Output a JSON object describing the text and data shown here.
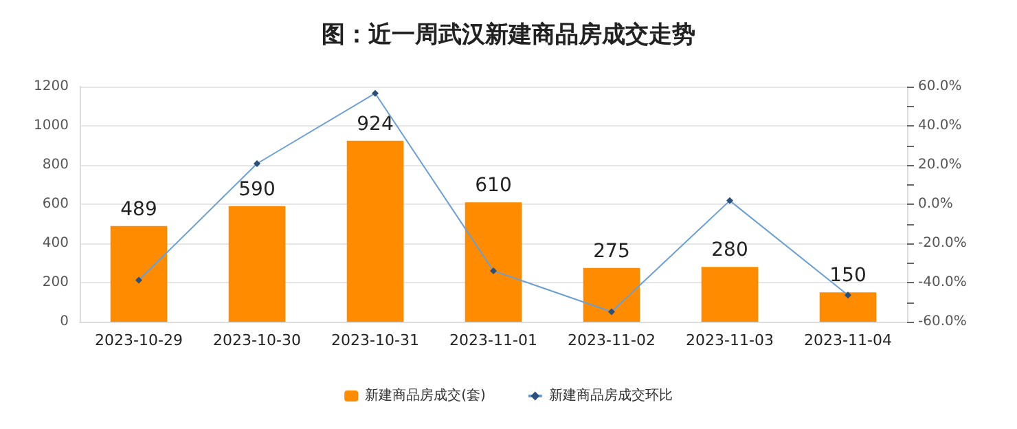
{
  "chart_data": {
    "type": "bar",
    "title": "图：近一周武汉新建商品房成交走势",
    "categories": [
      "2023-10-29",
      "2023-10-30",
      "2023-10-31",
      "2023-11-01",
      "2023-11-02",
      "2023-11-03",
      "2023-11-04"
    ],
    "series": [
      {
        "name": "新建商品房成交(套)",
        "color": "#ff8c00",
        "values": [
          489,
          590,
          924,
          610,
          275,
          280,
          150
        ],
        "value_labels": [
          "489",
          "590",
          "924",
          "610",
          "275",
          "280",
          "150"
        ]
      },
      {
        "name": "新建商品房成交环比",
        "type": "line",
        "axis": "y2",
        "color": "#6a9fd4",
        "marker": "diamond",
        "values": [
          -38.8,
          20.7,
          56.6,
          -34.0,
          -54.9,
          1.8,
          -46.4
        ]
      }
    ],
    "ylim": [
      0,
      1200
    ],
    "yticks": [
      0,
      200,
      400,
      600,
      800,
      1000,
      1200
    ],
    "y2lim": [
      -60,
      60
    ],
    "y2ticks": [
      {
        "value": -60,
        "label": "-60.0%"
      },
      {
        "value": -50,
        "label": null
      },
      {
        "value": -40,
        "label": "-40.0%"
      },
      {
        "value": -30,
        "label": null
      },
      {
        "value": -20,
        "label": "-20.0%"
      },
      {
        "value": -10,
        "label": null
      },
      {
        "value": 0,
        "label": "0.0%"
      },
      {
        "value": 10,
        "label": null
      },
      {
        "value": 20,
        "label": "20.0%"
      },
      {
        "value": 30,
        "label": null
      },
      {
        "value": 40,
        "label": "40.0%"
      },
      {
        "value": 50,
        "label": null
      },
      {
        "value": 60,
        "label": "60.0%"
      }
    ],
    "grid": "y",
    "legend": "bottom"
  }
}
